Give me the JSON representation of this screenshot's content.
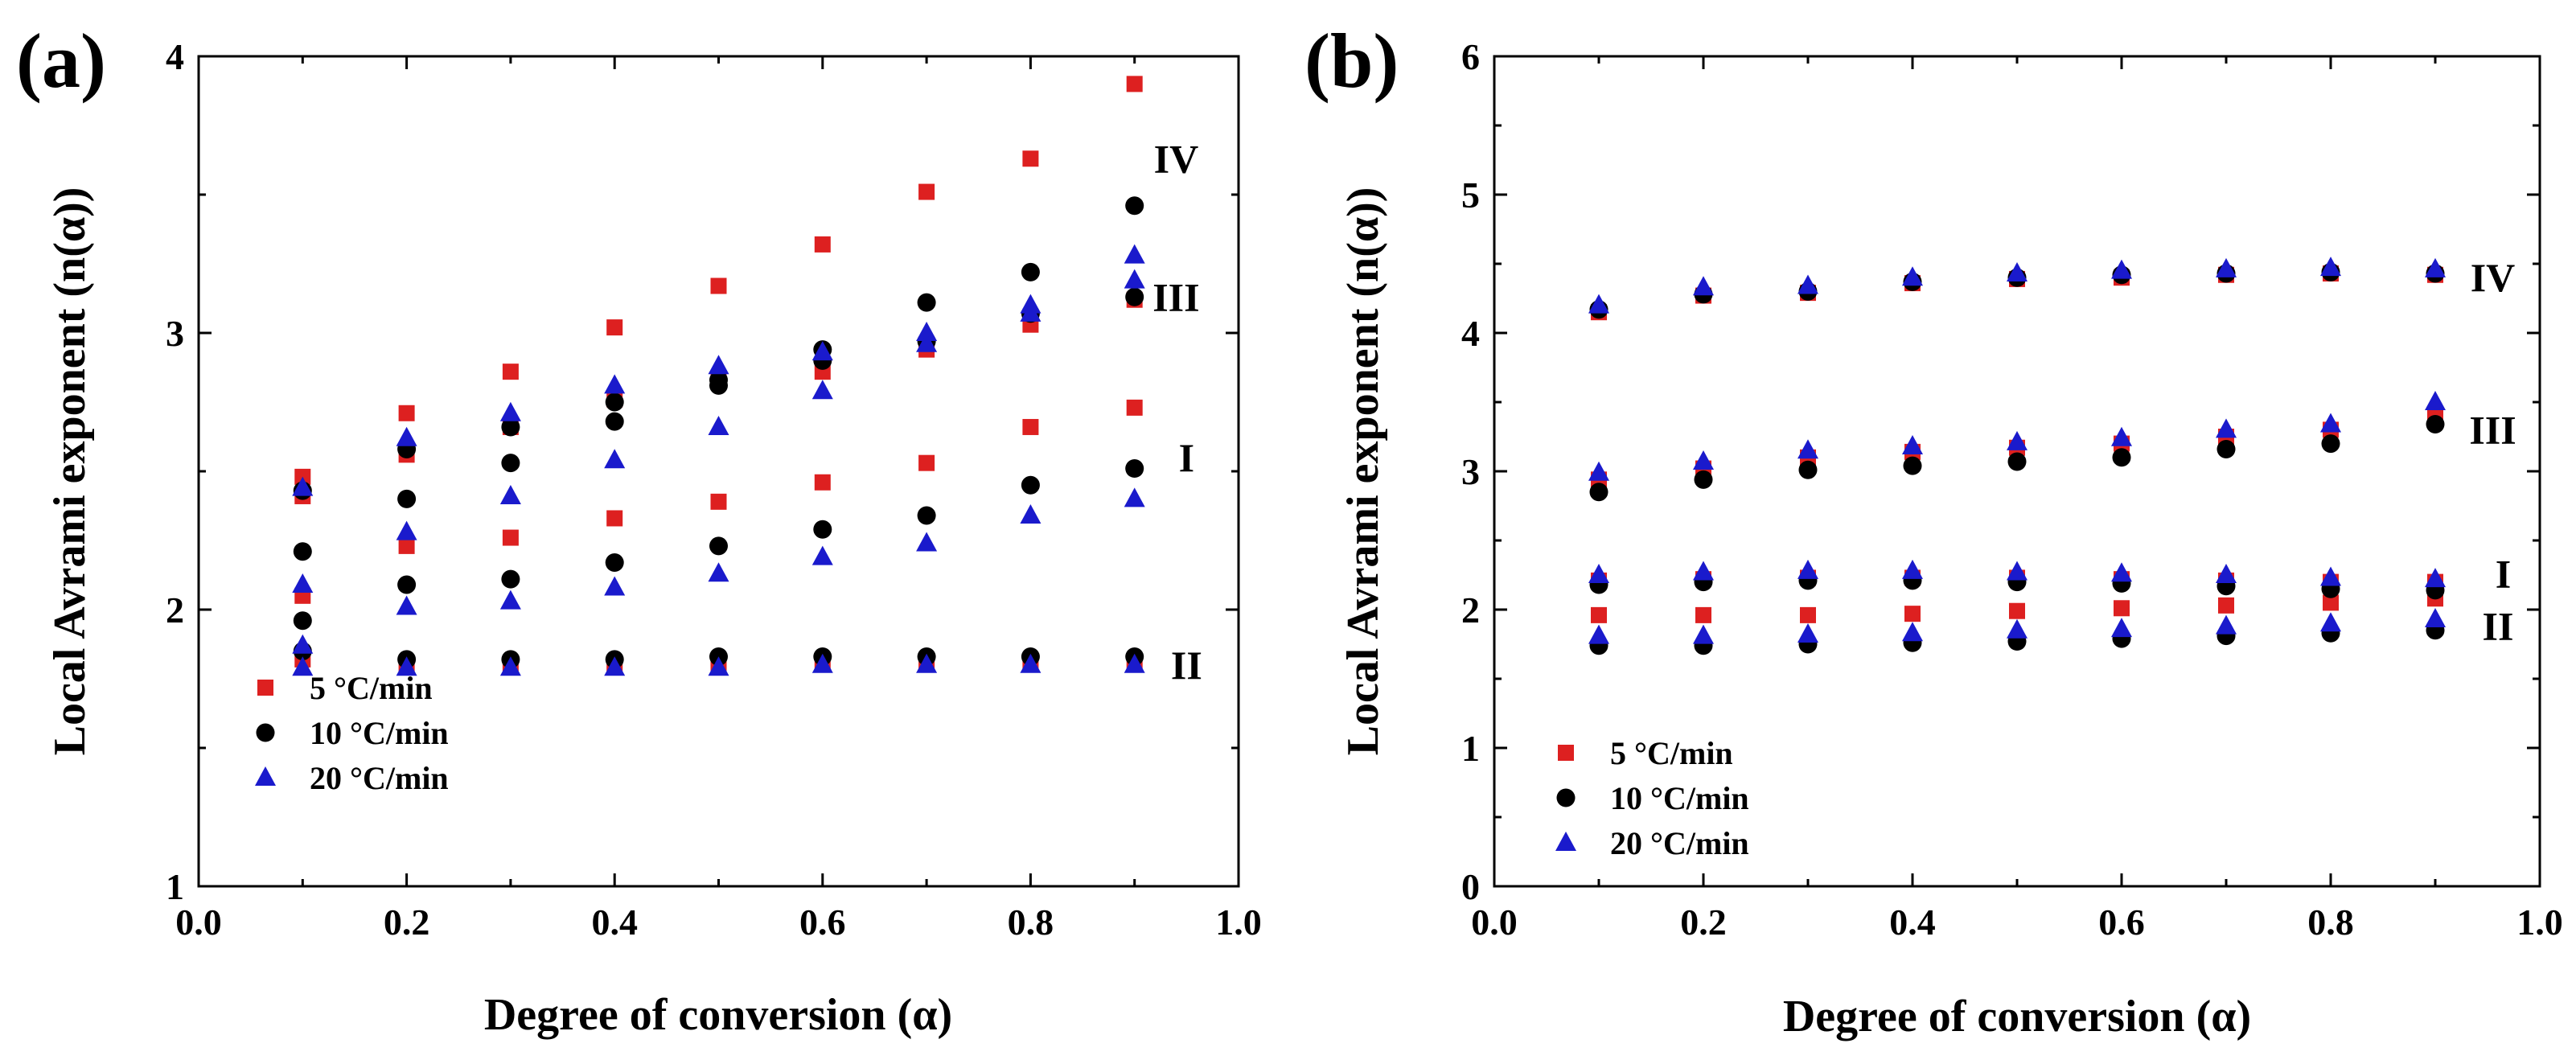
{
  "chart_data": [
    {
      "type": "scatter",
      "panel_label": "(a)",
      "xlabel": "Degree of conversion (α)",
      "ylabel": "Local Avrami exponent (n(α))",
      "xlim": [
        0.0,
        1.0
      ],
      "ylim": [
        1,
        4
      ],
      "xticks": [
        "0.0",
        "0.2",
        "0.4",
        "0.6",
        "0.8",
        "1.0"
      ],
      "yticks": [
        "1",
        "2",
        "3",
        "4"
      ],
      "legend": {
        "placement": "bottom-left",
        "entries": [
          "5 °C/min",
          "10 °C/min",
          "20 °C/min"
        ]
      },
      "series": [
        {
          "name": "5 °C/min",
          "marker": "square",
          "color": "#dd2020",
          "x": [
            0.1,
            0.2,
            0.3,
            0.4,
            0.5,
            0.6,
            0.7,
            0.8,
            0.9,
            0.1,
            0.2,
            0.3,
            0.4,
            0.5,
            0.6,
            0.7,
            0.8,
            0.9,
            0.1,
            0.2,
            0.3,
            0.4,
            0.5,
            0.6,
            0.7,
            0.8,
            0.9,
            0.1,
            0.2,
            0.3,
            0.4,
            0.5,
            0.6,
            0.7,
            0.8,
            0.9
          ],
          "y": [
            2.48,
            2.71,
            2.86,
            3.02,
            3.17,
            3.32,
            3.51,
            3.63,
            3.9,
            2.41,
            2.56,
            2.66,
            2.76,
            2.83,
            2.86,
            2.94,
            3.03,
            3.12,
            2.05,
            2.23,
            2.26,
            2.33,
            2.39,
            2.46,
            2.53,
            2.66,
            2.73,
            1.82,
            1.8,
            1.8,
            1.8,
            1.8,
            1.81,
            1.81,
            1.81,
            1.81
          ]
        },
        {
          "name": "10 °C/min",
          "marker": "circle",
          "color": "#000000",
          "x": [
            0.1,
            0.2,
            0.3,
            0.4,
            0.5,
            0.6,
            0.7,
            0.8,
            0.9,
            0.1,
            0.2,
            0.3,
            0.4,
            0.5,
            0.6,
            0.7,
            0.8,
            0.9,
            0.1,
            0.2,
            0.3,
            0.4,
            0.5,
            0.6,
            0.7,
            0.8,
            0.9,
            0.1,
            0.2,
            0.3,
            0.4,
            0.5,
            0.6,
            0.7,
            0.8,
            0.9
          ],
          "y": [
            2.43,
            2.58,
            2.66,
            2.75,
            2.83,
            2.94,
            3.11,
            3.22,
            3.46,
            2.21,
            2.4,
            2.53,
            2.68,
            2.81,
            2.9,
            2.97,
            3.07,
            3.13,
            1.96,
            2.09,
            2.11,
            2.17,
            2.23,
            2.29,
            2.34,
            2.45,
            2.51,
            1.85,
            1.82,
            1.82,
            1.82,
            1.83,
            1.83,
            1.83,
            1.83,
            1.83
          ]
        },
        {
          "name": "20 °C/min",
          "marker": "triangle",
          "color": "#1a1acc",
          "x": [
            0.1,
            0.2,
            0.3,
            0.4,
            0.5,
            0.6,
            0.7,
            0.8,
            0.9,
            0.1,
            0.2,
            0.3,
            0.4,
            0.5,
            0.6,
            0.7,
            0.8,
            0.9,
            0.1,
            0.2,
            0.3,
            0.4,
            0.5,
            0.6,
            0.7,
            0.8,
            0.9,
            0.1,
            0.2,
            0.3,
            0.4,
            0.5,
            0.6,
            0.7,
            0.8,
            0.9
          ],
          "y": [
            2.44,
            2.62,
            2.71,
            2.81,
            2.88,
            2.93,
            3.0,
            3.1,
            3.28,
            2.09,
            2.28,
            2.41,
            2.54,
            2.66,
            2.79,
            2.96,
            3.07,
            3.19,
            1.87,
            2.01,
            2.03,
            2.08,
            2.13,
            2.19,
            2.24,
            2.34,
            2.4,
            1.79,
            1.79,
            1.79,
            1.79,
            1.79,
            1.8,
            1.8,
            1.8,
            1.8
          ]
        }
      ],
      "annotations": [
        {
          "text": "IV",
          "x": 0.94,
          "y": 3.63
        },
        {
          "text": "III",
          "x": 0.94,
          "y": 3.13
        },
        {
          "text": "I",
          "x": 0.95,
          "y": 2.55
        },
        {
          "text": "II",
          "x": 0.95,
          "y": 1.8
        }
      ]
    },
    {
      "type": "scatter",
      "panel_label": "(b)",
      "xlabel": "Degree of conversion (α)",
      "ylabel": "Local Avrami exponent (n(α))",
      "xlim": [
        0.0,
        1.0
      ],
      "ylim": [
        0,
        6
      ],
      "xticks": [
        "0.0",
        "0.2",
        "0.4",
        "0.6",
        "0.8",
        "1.0"
      ],
      "yticks": [
        "0",
        "1",
        "2",
        "3",
        "4",
        "5",
        "6"
      ],
      "legend": {
        "placement": "bottom-left",
        "entries": [
          "5 °C/min",
          "10 °C/min",
          "20 °C/min"
        ]
      },
      "series": [
        {
          "name": "5 °C/min",
          "marker": "square",
          "color": "#dd2020",
          "x": [
            0.1,
            0.2,
            0.3,
            0.4,
            0.5,
            0.6,
            0.7,
            0.8,
            0.9,
            0.1,
            0.2,
            0.3,
            0.4,
            0.5,
            0.6,
            0.7,
            0.8,
            0.9,
            0.1,
            0.2,
            0.3,
            0.4,
            0.5,
            0.6,
            0.7,
            0.8,
            0.9,
            0.1,
            0.2,
            0.3,
            0.4,
            0.5,
            0.6,
            0.7,
            0.8,
            0.9
          ],
          "y": [
            4.15,
            4.27,
            4.29,
            4.36,
            4.39,
            4.4,
            4.42,
            4.43,
            4.42,
            2.94,
            3.02,
            3.1,
            3.14,
            3.17,
            3.2,
            3.25,
            3.3,
            3.4,
            2.21,
            2.22,
            2.23,
            2.23,
            2.23,
            2.22,
            2.21,
            2.2,
            2.2,
            1.96,
            1.96,
            1.96,
            1.97,
            1.99,
            2.01,
            2.03,
            2.05,
            2.08
          ]
        },
        {
          "name": "10 °C/min",
          "marker": "circle",
          "color": "#000000",
          "x": [
            0.1,
            0.2,
            0.3,
            0.4,
            0.5,
            0.6,
            0.7,
            0.8,
            0.9,
            0.1,
            0.2,
            0.3,
            0.4,
            0.5,
            0.6,
            0.7,
            0.8,
            0.9,
            0.1,
            0.2,
            0.3,
            0.4,
            0.5,
            0.6,
            0.7,
            0.8,
            0.9,
            0.1,
            0.2,
            0.3,
            0.4,
            0.5,
            0.6,
            0.7,
            0.8,
            0.9
          ],
          "y": [
            4.17,
            4.28,
            4.3,
            4.37,
            4.4,
            4.42,
            4.43,
            4.44,
            4.43,
            2.85,
            2.94,
            3.01,
            3.04,
            3.07,
            3.1,
            3.16,
            3.2,
            3.34,
            2.18,
            2.2,
            2.21,
            2.21,
            2.2,
            2.19,
            2.17,
            2.15,
            2.14,
            1.74,
            1.74,
            1.75,
            1.76,
            1.77,
            1.79,
            1.81,
            1.83,
            1.85
          ]
        },
        {
          "name": "20 °C/min",
          "marker": "triangle",
          "color": "#1a1acc",
          "x": [
            0.1,
            0.2,
            0.3,
            0.4,
            0.5,
            0.6,
            0.7,
            0.8,
            0.9,
            0.1,
            0.2,
            0.3,
            0.4,
            0.5,
            0.6,
            0.7,
            0.8,
            0.9,
            0.1,
            0.2,
            0.3,
            0.4,
            0.5,
            0.6,
            0.7,
            0.8,
            0.9,
            0.1,
            0.2,
            0.3,
            0.4,
            0.5,
            0.6,
            0.7,
            0.8,
            0.9
          ],
          "y": [
            4.2,
            4.33,
            4.34,
            4.4,
            4.43,
            4.45,
            4.46,
            4.47,
            4.46,
            2.99,
            3.07,
            3.15,
            3.18,
            3.21,
            3.24,
            3.3,
            3.34,
            3.5,
            2.25,
            2.27,
            2.28,
            2.28,
            2.27,
            2.26,
            2.25,
            2.23,
            2.22,
            1.81,
            1.81,
            1.82,
            1.83,
            1.85,
            1.86,
            1.88,
            1.9,
            1.93
          ]
        }
      ],
      "annotations": [
        {
          "text": "IV",
          "x": 0.955,
          "y": 4.4
        },
        {
          "text": "III",
          "x": 0.955,
          "y": 3.3
        },
        {
          "text": "I",
          "x": 0.965,
          "y": 2.26
        },
        {
          "text": "II",
          "x": 0.96,
          "y": 1.88
        }
      ]
    }
  ]
}
